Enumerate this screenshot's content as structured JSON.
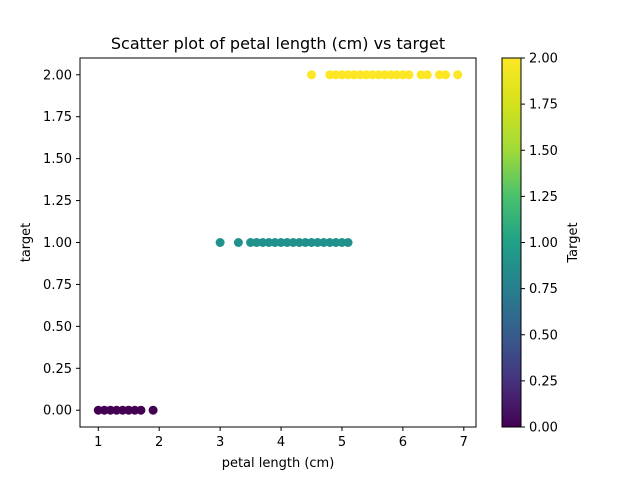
{
  "chart_data": {
    "type": "scatter",
    "title": "Scatter plot of petal length (cm) vs target",
    "xlabel": "petal length (cm)",
    "ylabel": "target",
    "xlim": [
      0.7,
      7.2
    ],
    "ylim": [
      -0.1,
      2.1
    ],
    "x_ticks": [
      "1",
      "2",
      "3",
      "4",
      "5",
      "6",
      "7"
    ],
    "y_ticks": [
      "0.00",
      "0.25",
      "0.50",
      "0.75",
      "1.00",
      "1.25",
      "1.50",
      "1.75",
      "2.00"
    ],
    "grid": false,
    "colorbar": {
      "label": "Target",
      "range": [
        0,
        2
      ],
      "ticks": [
        "0.00",
        "0.25",
        "0.50",
        "0.75",
        "1.00",
        "1.25",
        "1.50",
        "1.75",
        "2.00"
      ],
      "colormap": "viridis"
    },
    "series": [
      {
        "target": 0,
        "color": "#440154",
        "x": [
          1.0,
          1.1,
          1.2,
          1.3,
          1.4,
          1.5,
          1.6,
          1.7,
          1.9
        ],
        "y": [
          0,
          0,
          0,
          0,
          0,
          0,
          0,
          0,
          0
        ]
      },
      {
        "target": 1,
        "color": "#21918c",
        "x": [
          3.0,
          3.3,
          3.5,
          3.6,
          3.7,
          3.8,
          3.9,
          4.0,
          4.1,
          4.2,
          4.3,
          4.4,
          4.5,
          4.6,
          4.7,
          4.8,
          4.9,
          5.0,
          5.1
        ],
        "y": [
          1,
          1,
          1,
          1,
          1,
          1,
          1,
          1,
          1,
          1,
          1,
          1,
          1,
          1,
          1,
          1,
          1,
          1,
          1
        ]
      },
      {
        "target": 2,
        "color": "#fde725",
        "x": [
          4.5,
          4.8,
          4.9,
          5.0,
          5.1,
          5.2,
          5.3,
          5.4,
          5.5,
          5.6,
          5.7,
          5.8,
          5.9,
          6.0,
          6.1,
          6.3,
          6.4,
          6.6,
          6.7,
          6.9
        ],
        "y": [
          2,
          2,
          2,
          2,
          2,
          2,
          2,
          2,
          2,
          2,
          2,
          2,
          2,
          2,
          2,
          2,
          2,
          2,
          2,
          2
        ]
      }
    ]
  }
}
